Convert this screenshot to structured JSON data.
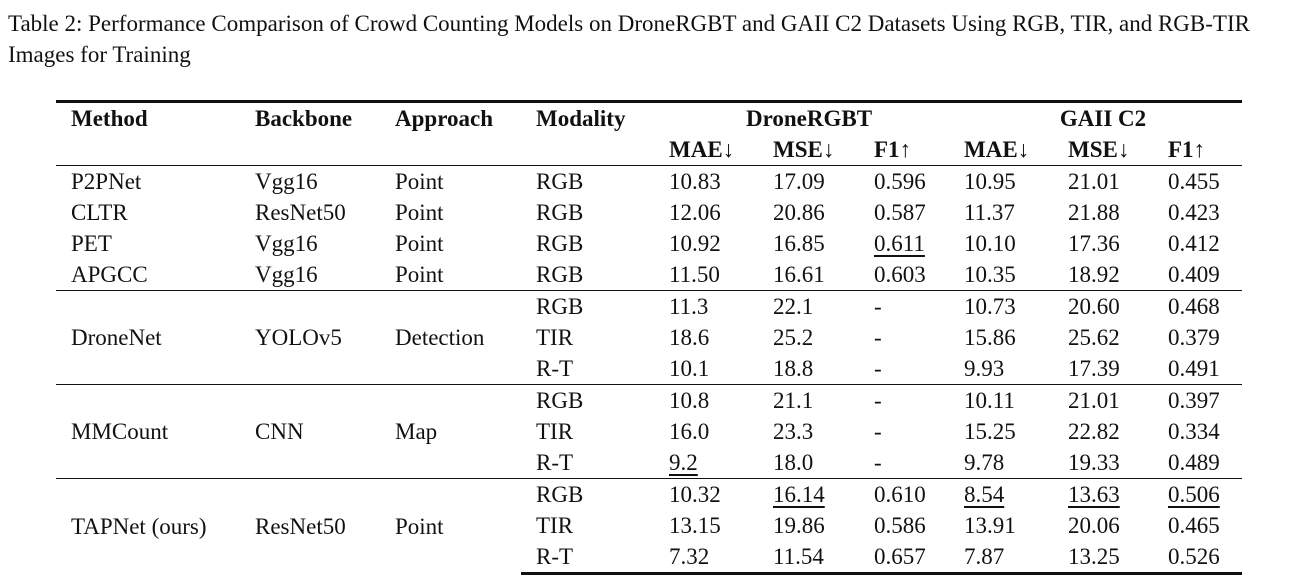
{
  "caption": "Table 2: Performance Comparison of Crowd Counting Models on DroneRGBT and GAII C2 Datasets Using RGB, TIR, and RGB-TIR Images for Training",
  "headers": {
    "method": "Method",
    "backbone": "Backbone",
    "approach": "Approach",
    "modality": "Modality",
    "group1": "DroneRGBT",
    "group2": "GAII C2",
    "mae": "MAE↓",
    "mse": "MSE↓",
    "f1": "F1↑"
  },
  "groups": [
    {
      "rows": [
        {
          "method": "P2PNet",
          "backbone": "Vgg16",
          "approach": "Point",
          "modality": "RGB",
          "d_mae": "10.83",
          "d_mse": "17.09",
          "d_f1": "0.596",
          "g_mae": "10.95",
          "g_mse": "21.01",
          "g_f1": "0.455"
        },
        {
          "method": "CLTR",
          "backbone": "ResNet50",
          "approach": "Point",
          "modality": "RGB",
          "d_mae": "12.06",
          "d_mse": "20.86",
          "d_f1": "0.587",
          "g_mae": "11.37",
          "g_mse": "21.88",
          "g_f1": "0.423"
        },
        {
          "method": "PET",
          "backbone": "Vgg16",
          "approach": "Point",
          "modality": "RGB",
          "d_mae": "10.92",
          "d_mse": "16.85",
          "d_f1": "0.611",
          "g_mae": "10.10",
          "g_mse": "17.36",
          "g_f1": "0.412"
        },
        {
          "method": "APGCC",
          "backbone": "Vgg16",
          "approach": "Point",
          "modality": "RGB",
          "d_mae": "11.50",
          "d_mse": "16.61",
          "d_f1": "0.603",
          "g_mae": "10.35",
          "g_mse": "18.92",
          "g_f1": "0.409"
        }
      ]
    },
    {
      "method": "DroneNet",
      "backbone": "YOLOv5",
      "approach": "Detection",
      "rows": [
        {
          "modality": "RGB",
          "d_mae": "11.3",
          "d_mse": "22.1",
          "d_f1": "-",
          "g_mae": "10.73",
          "g_mse": "20.60",
          "g_f1": "0.468"
        },
        {
          "modality": "TIR",
          "d_mae": "18.6",
          "d_mse": "25.2",
          "d_f1": "-",
          "g_mae": "15.86",
          "g_mse": "25.62",
          "g_f1": "0.379"
        },
        {
          "modality": "R-T",
          "d_mae": "10.1",
          "d_mse": "18.8",
          "d_f1": "-",
          "g_mae": "9.93",
          "g_mse": "17.39",
          "g_f1": "0.491"
        }
      ]
    },
    {
      "method": "MMCount",
      "backbone": "CNN",
      "approach": "Map",
      "rows": [
        {
          "modality": "RGB",
          "d_mae": "10.8",
          "d_mse": "21.1",
          "d_f1": "-",
          "g_mae": "10.11",
          "g_mse": "21.01",
          "g_f1": "0.397"
        },
        {
          "modality": "TIR",
          "d_mae": "16.0",
          "d_mse": "23.3",
          "d_f1": "-",
          "g_mae": "15.25",
          "g_mse": "22.82",
          "g_f1": "0.334"
        },
        {
          "modality": "R-T",
          "d_mae": "9.2",
          "d_mse": "18.0",
          "d_f1": "-",
          "g_mae": "9.78",
          "g_mse": "19.33",
          "g_f1": "0.489"
        }
      ]
    },
    {
      "method": "TAPNet (ours)",
      "backbone": "ResNet50",
      "approach": "Point",
      "rows": [
        {
          "modality": "RGB",
          "d_mae": "10.32",
          "d_mse": "16.14",
          "d_f1": "0.610",
          "g_mae": "8.54",
          "g_mse": "13.63",
          "g_f1": "0.506"
        },
        {
          "modality": "TIR",
          "d_mae": "13.15",
          "d_mse": "19.86",
          "d_f1": "0.586",
          "g_mae": "13.91",
          "g_mse": "20.06",
          "g_f1": "0.465"
        },
        {
          "modality": "R-T",
          "d_mae": "7.32",
          "d_mse": "11.54",
          "d_f1": "0.657",
          "g_mae": "7.87",
          "g_mse": "13.25",
          "g_f1": "0.526"
        }
      ]
    }
  ]
}
